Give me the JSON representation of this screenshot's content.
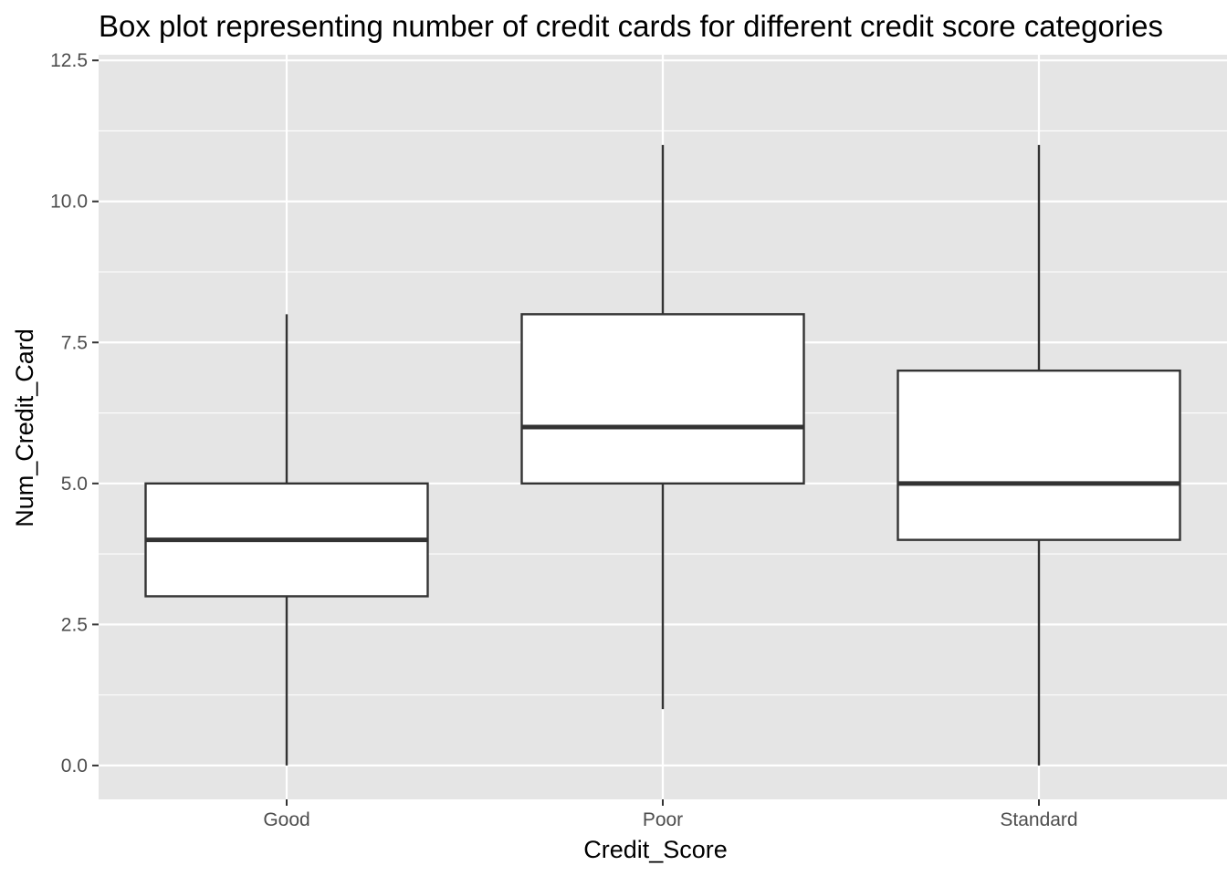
{
  "chart_data": {
    "type": "box",
    "title": "Box plot representing number of credit cards for different credit score categories",
    "xlabel": "Credit_Score",
    "ylabel": "Num_Credit_Card",
    "categories": [
      "Good",
      "Poor",
      "Standard"
    ],
    "boxes": [
      {
        "category": "Good",
        "whisker_low": 0,
        "q1": 3,
        "median": 4,
        "q3": 5,
        "whisker_high": 8
      },
      {
        "category": "Poor",
        "whisker_low": 1,
        "q1": 5,
        "median": 6,
        "q3": 8,
        "whisker_high": 11
      },
      {
        "category": "Standard",
        "whisker_low": 0,
        "q1": 4,
        "median": 5,
        "q3": 7,
        "whisker_high": 11
      }
    ],
    "ylim": [
      -0.6,
      12.6
    ],
    "yticks": [
      0,
      2.5,
      5,
      7.5,
      10,
      12.5
    ],
    "ytick_labels": [
      "0.0",
      "2.5",
      "5.0",
      "7.5",
      "10.0",
      "12.5"
    ],
    "grid": true,
    "colors": {
      "panel_background": "#e5e5e5",
      "grid": "#ffffff",
      "box_fill": "#ffffff",
      "box_stroke": "#333333",
      "tick_text": "#4d4d4d",
      "tick_mark": "#333333"
    }
  }
}
